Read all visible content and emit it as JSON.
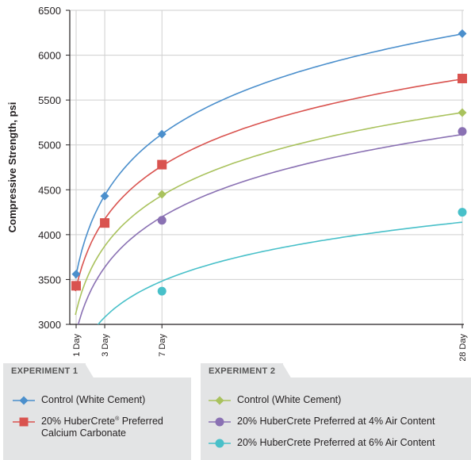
{
  "chart_data": {
    "type": "line",
    "ylabel": "Compressive Strength, psi",
    "xlabel": "",
    "ylim": [
      3000,
      6500
    ],
    "yticks": [
      3000,
      3500,
      4000,
      4500,
      5000,
      5500,
      6000,
      6500
    ],
    "x": [
      1,
      3,
      7,
      28
    ],
    "x_tick_labels": [
      "1 Day",
      "3 Day",
      "7 Day",
      "28 Day"
    ],
    "grid": true,
    "series": [
      {
        "name": "Control (White Cement)",
        "experiment": "EXPERIMENT 1",
        "color": "#4b8fcc",
        "marker": "diamond",
        "values": [
          3560,
          4430,
          5120,
          6240
        ]
      },
      {
        "name": "20% HuberCrete® Preferred Calcium Carbonate",
        "experiment": "EXPERIMENT 1",
        "color": "#d9534f",
        "marker": "square",
        "values": [
          3430,
          4130,
          4780,
          5740
        ]
      },
      {
        "name": "Control (White Cement)",
        "experiment": "EXPERIMENT 2",
        "color": "#a9c25d",
        "marker": "diamond",
        "values": [
          3150,
          3850,
          4450,
          5360
        ]
      },
      {
        "name": "20% HuberCrete Preferred at 4% Air Content",
        "experiment": "EXPERIMENT 2",
        "color": "#8a71b3",
        "marker": "circle",
        "values": [
          2950,
          3600,
          4160,
          5150
        ]
      },
      {
        "name": "20% HuberCrete Preferred at 6% Air Content",
        "experiment": "EXPERIMENT 2",
        "color": "#48c0c9",
        "marker": "circle",
        "values": [
          2700,
          2940,
          3370,
          4250
        ]
      }
    ],
    "marker_shown": [
      [
        true,
        true,
        true,
        true
      ],
      [
        true,
        true,
        true,
        true
      ],
      [
        false,
        false,
        true,
        true
      ],
      [
        false,
        false,
        true,
        true
      ],
      [
        false,
        false,
        true,
        true
      ]
    ]
  },
  "legend": {
    "experiment1": {
      "title": "EXPERIMENT 1",
      "items": [
        {
          "label": "Control (White Cement)",
          "color": "#4b8fcc",
          "marker": "diamond"
        },
        {
          "label_main": "20% HuberCrete",
          "label_sup": "®",
          "label_rest": " Preferred\nCalcium Carbonate",
          "color": "#d9534f",
          "marker": "square"
        }
      ]
    },
    "experiment2": {
      "title": "EXPERIMENT 2",
      "items": [
        {
          "label": "Control (White Cement)",
          "color": "#a9c25d",
          "marker": "diamond"
        },
        {
          "label": "20% HuberCrete Preferred at 4% Air Content",
          "color": "#8a71b3",
          "marker": "circle"
        },
        {
          "label": "20% HuberCrete Preferred at 6% Air Content",
          "color": "#48c0c9",
          "marker": "circle"
        }
      ]
    }
  }
}
